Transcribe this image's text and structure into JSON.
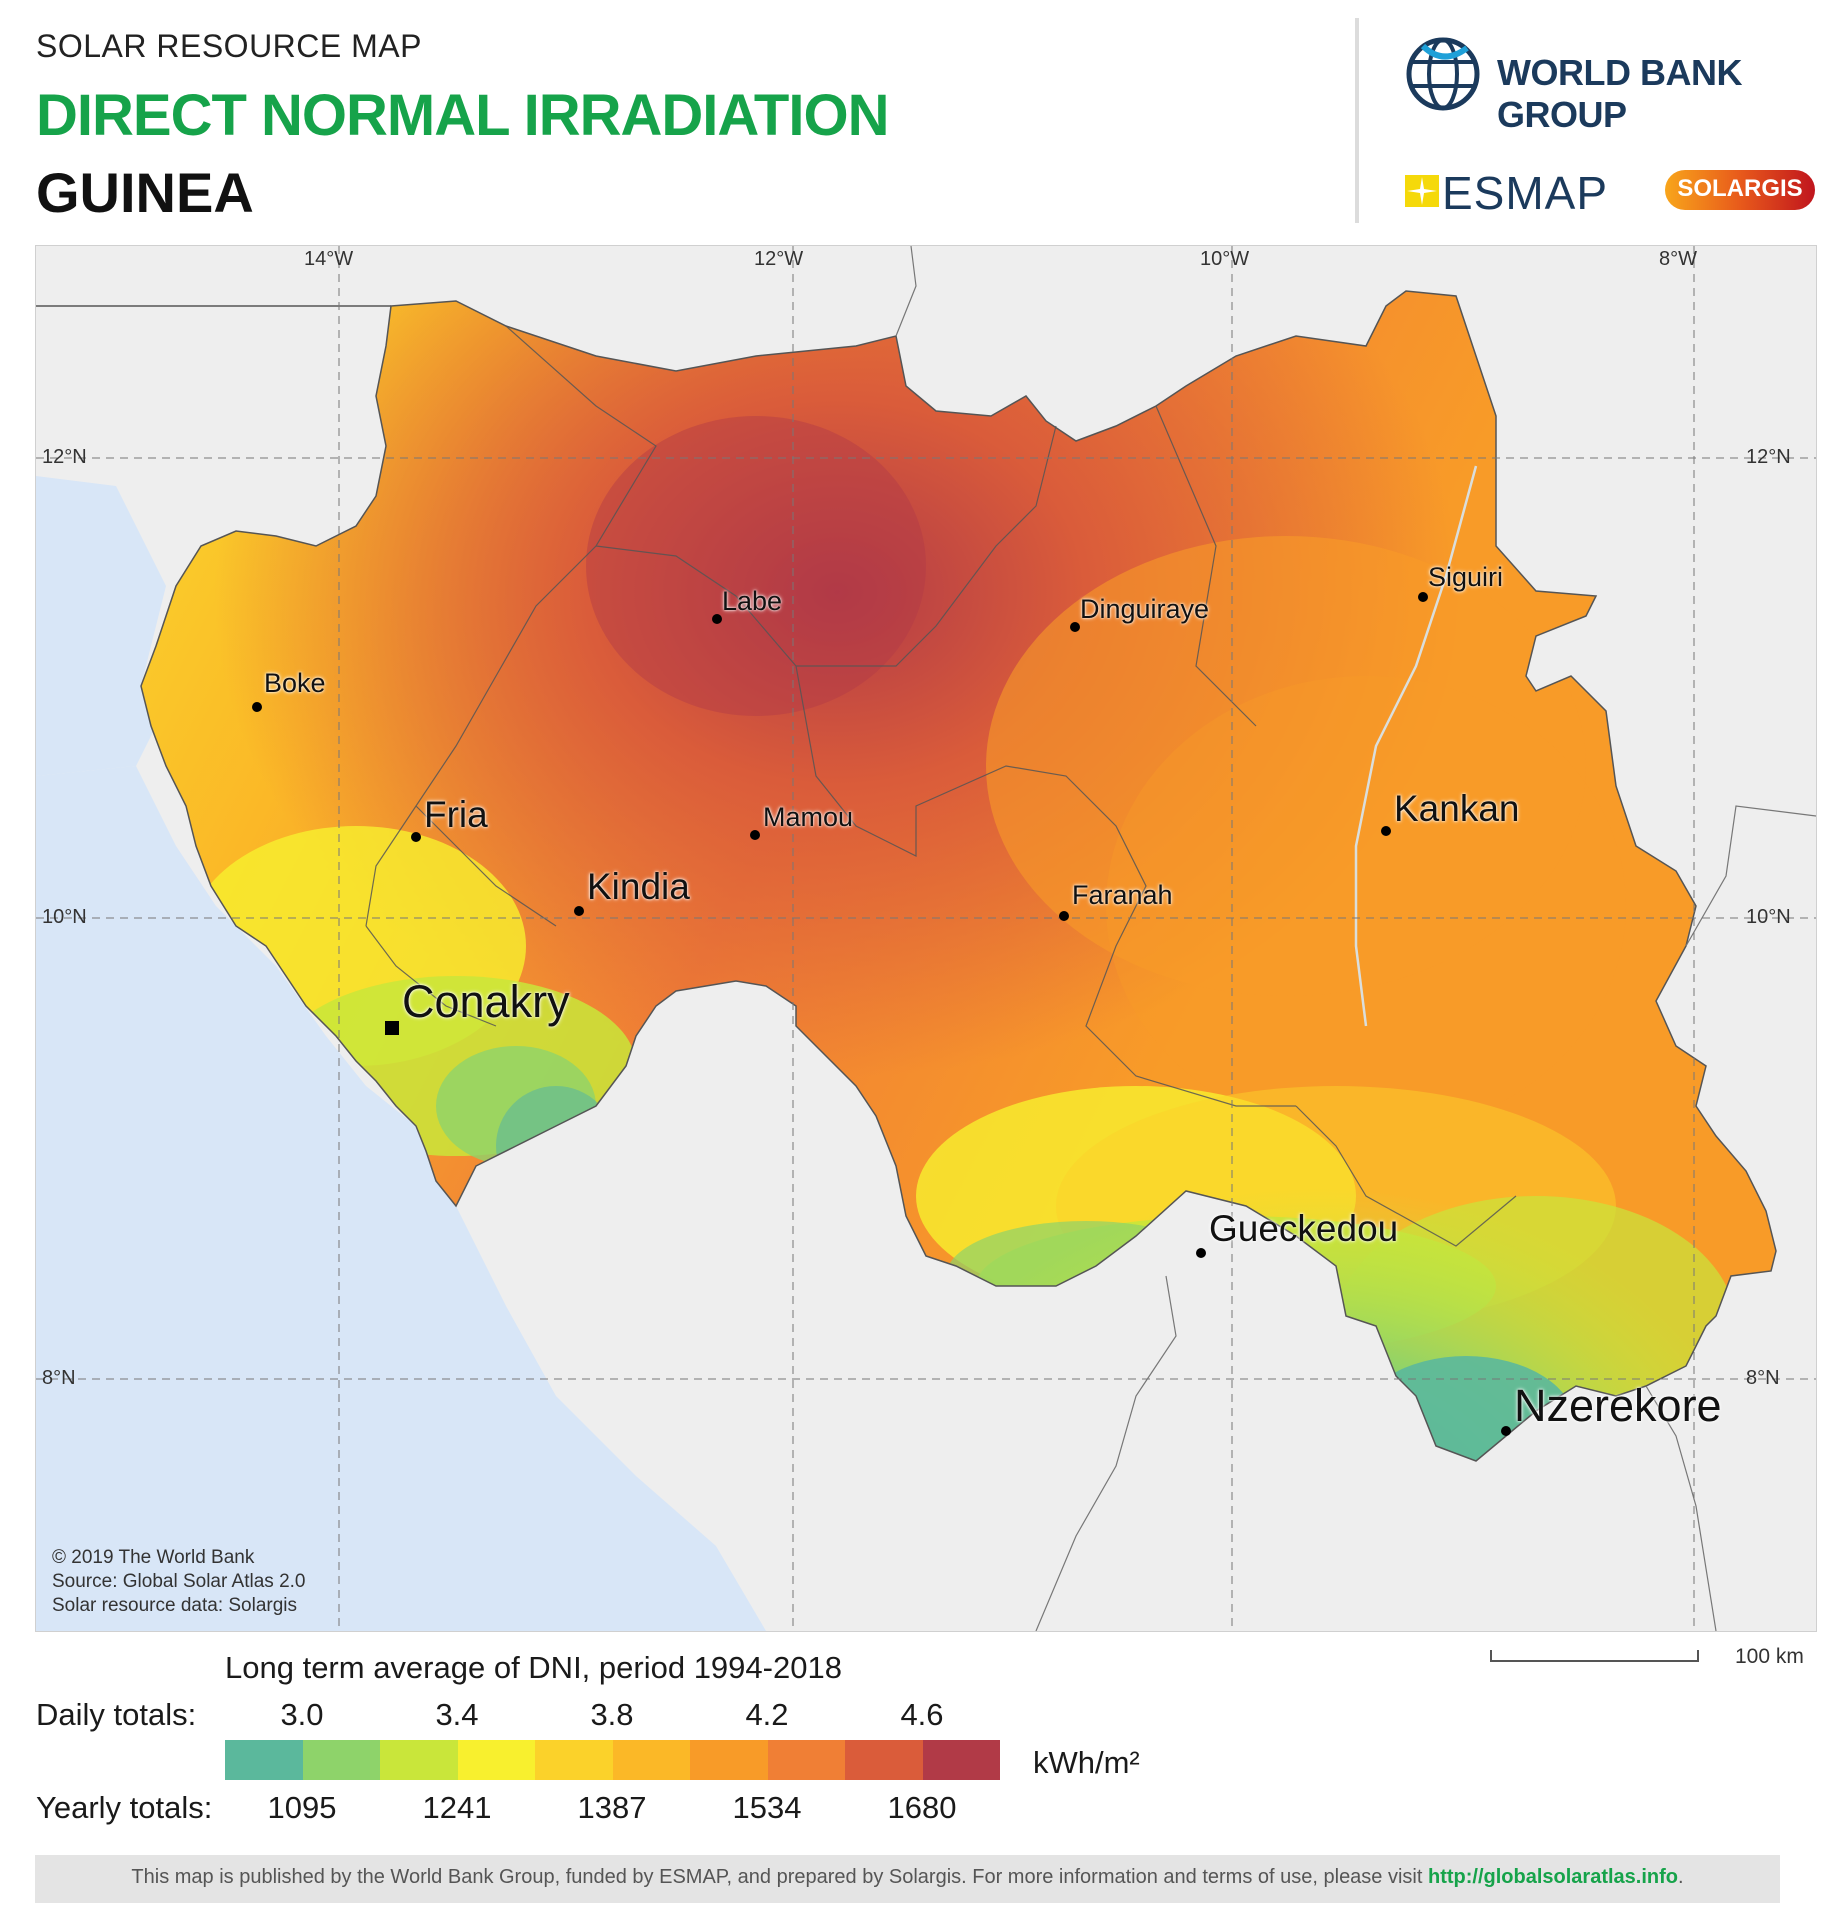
{
  "header": {
    "subtitle": "SOLAR RESOURCE MAP",
    "title": "DIRECT NORMAL IRRADIATION",
    "country": "GUINEA"
  },
  "logos": {
    "wbg": "WORLD BANK GROUP",
    "esmap": "ESMAP",
    "solargis": "SOLARGIS"
  },
  "graticule": {
    "lon_top": [
      "14°W",
      "12°W",
      "10°W",
      "8°W"
    ],
    "lat_left": [
      "12°N",
      "10°N",
      "8°N"
    ],
    "lat_right": [
      "12°N",
      "10°N",
      "8°N"
    ]
  },
  "cities": [
    {
      "name": "Labe"
    },
    {
      "name": "Dinguiraye"
    },
    {
      "name": "Siguiri"
    },
    {
      "name": "Boke"
    },
    {
      "name": "Fria"
    },
    {
      "name": "Mamou"
    },
    {
      "name": "Kankan"
    },
    {
      "name": "Kindia"
    },
    {
      "name": "Faranah"
    },
    {
      "name": "Conakry"
    },
    {
      "name": "Gueckedou"
    },
    {
      "name": "Nzerekore"
    }
  ],
  "credits": [
    "© 2019 The World Bank",
    "Source: Global Solar Atlas 2.0",
    "Solar resource data: Solargis"
  ],
  "scale": {
    "label": "100 km"
  },
  "legend": {
    "title": "Long term average of DNI, period 1994-2018",
    "daily_label": "Daily totals:",
    "yearly_label": "Yearly totals:",
    "daily_ticks": [
      "3.0",
      "3.4",
      "3.8",
      "4.2",
      "4.6"
    ],
    "yearly_ticks": [
      "1095",
      "1241",
      "1387",
      "1534",
      "1680"
    ],
    "unit": "kWh/m²",
    "colors": [
      "#5bb89c",
      "#8ed36a",
      "#c9e63a",
      "#f8f02e",
      "#fbd22a",
      "#fbb827",
      "#f89b28",
      "#f07f35",
      "#da5c3a",
      "#b13a47"
    ]
  },
  "footer": {
    "text": "This map is published by the World Bank Group, funded by ESMAP, and prepared by Solargis. For more information and terms of use, please visit ",
    "link": "http://globalsolaratlas.info",
    "end": "."
  }
}
